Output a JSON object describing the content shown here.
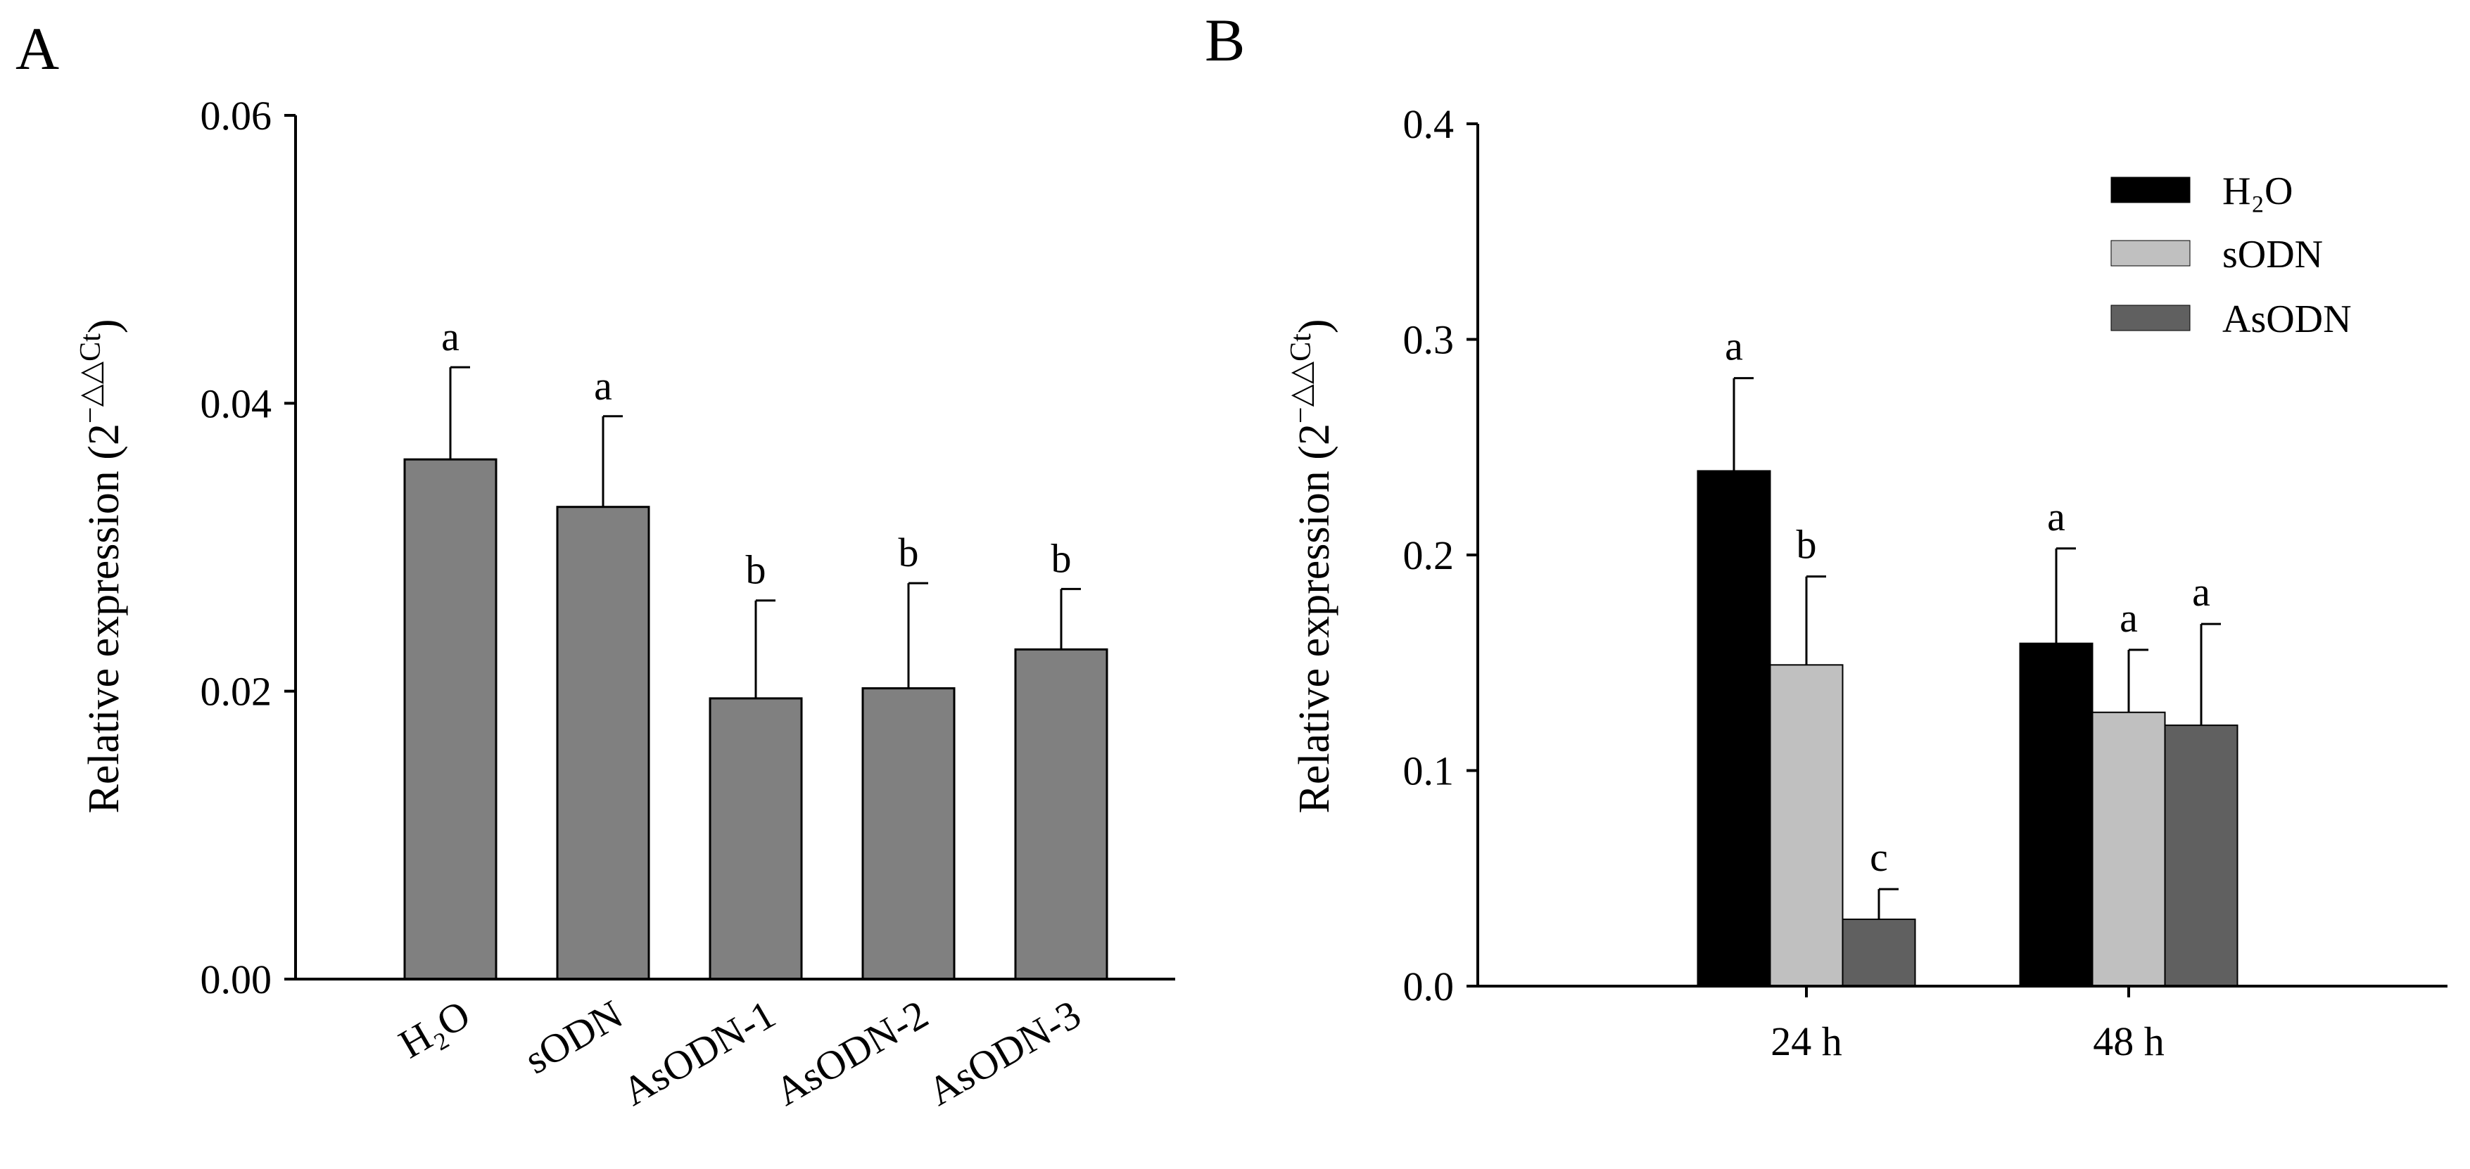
{
  "colors": {
    "panel_a_bar": "#808080",
    "h2o": "#000000",
    "sodn": "#c0c0c0",
    "asodn": "#606060",
    "axis": "#000000"
  },
  "chart_data": [
    {
      "type": "bar",
      "panel": "A",
      "categories": [
        "H₂O",
        "sODN",
        "AsODN-1",
        "AsODN-2",
        "AsODN-3"
      ],
      "values": [
        0.0361,
        0.0328,
        0.0195,
        0.0202,
        0.0229
      ],
      "errors": [
        0.0064,
        0.0063,
        0.0068,
        0.0073,
        0.0042
      ],
      "significance": [
        "a",
        "a",
        "b",
        "b",
        "b"
      ],
      "ylabel": "Relative expression (2",
      "ylabel_sup": "−△△Ct",
      "ylabel_close": ")",
      "ylim": [
        0,
        0.06
      ],
      "yticks": [
        "0.00",
        "0.02",
        "0.04",
        "0.06"
      ],
      "legend": "none"
    },
    {
      "type": "bar",
      "panel": "B",
      "categories": [
        "24 h",
        "48 h"
      ],
      "series": [
        {
          "name": "H₂O",
          "values": [
            0.239,
            0.159
          ],
          "errors": [
            0.043,
            0.044
          ],
          "significance": [
            "a",
            "a"
          ]
        },
        {
          "name": "sODN",
          "values": [
            0.149,
            0.127
          ],
          "errors": [
            0.041,
            0.029
          ],
          "significance": [
            "b",
            "a"
          ]
        },
        {
          "name": "AsODN",
          "values": [
            0.031,
            0.121
          ],
          "errors": [
            0.014,
            0.047
          ],
          "significance": [
            "c",
            "a"
          ]
        }
      ],
      "ylabel": "Relative expression (2",
      "ylabel_sup": "−△△Ct",
      "ylabel_close": ")",
      "ylim": [
        0,
        0.4
      ],
      "yticks": [
        "0.0",
        "0.1",
        "0.2",
        "0.3",
        "0.4"
      ],
      "legend": "top-right"
    }
  ]
}
